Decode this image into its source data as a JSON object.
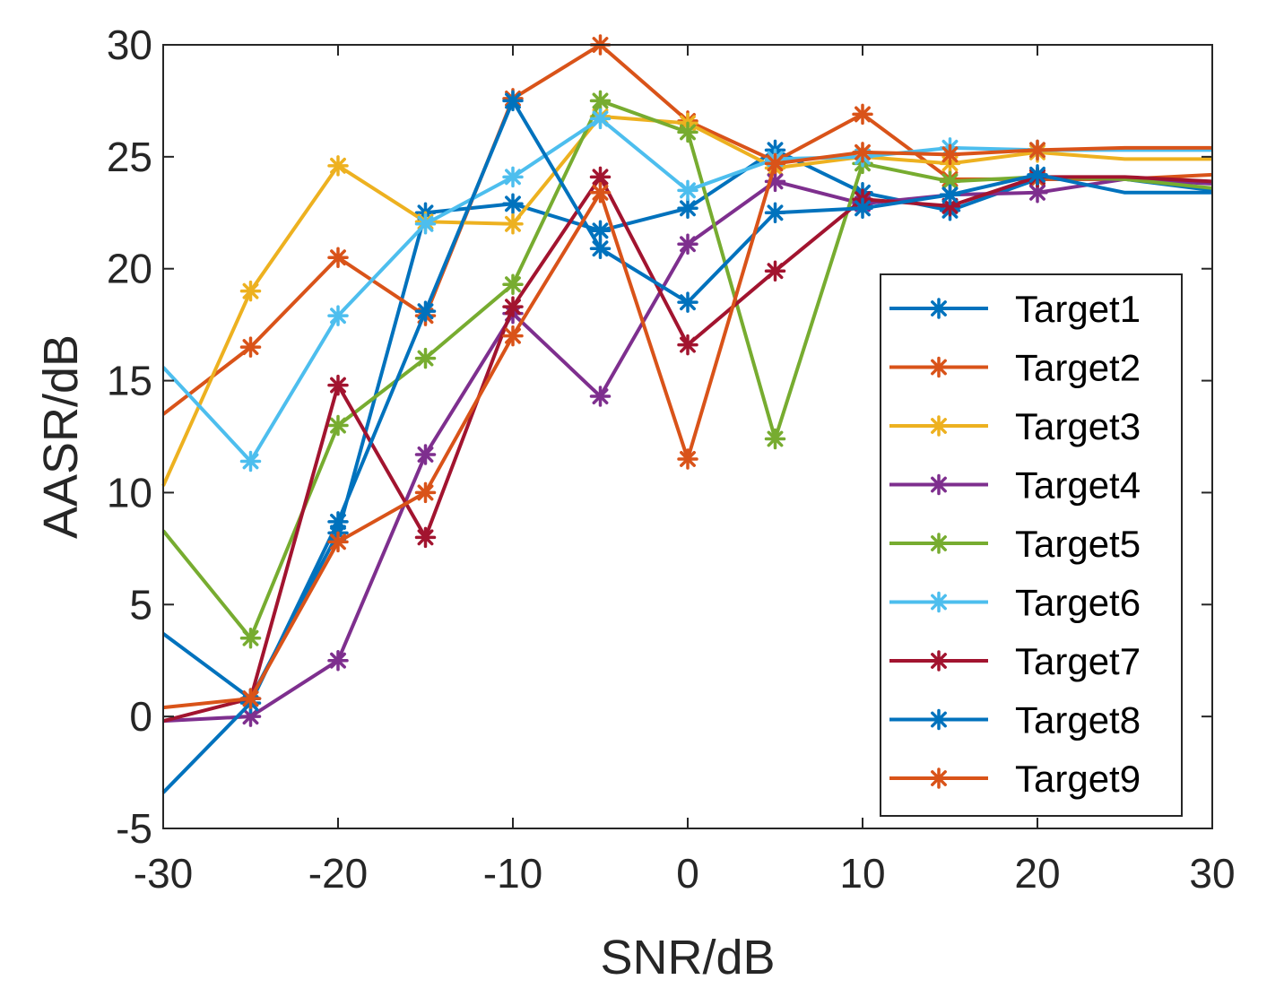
{
  "chart_data": {
    "type": "line",
    "title": "",
    "xlabel": "SNR/dB",
    "ylabel": "AASR/dB",
    "xlim": [
      -30,
      30
    ],
    "ylim": [
      -5,
      30
    ],
    "xticks": [
      -30,
      -20,
      -10,
      0,
      10,
      20,
      30
    ],
    "yticks": [
      -5,
      0,
      5,
      10,
      15,
      20,
      25,
      30
    ],
    "xtick_labels": [
      "-30",
      "-20",
      "-10",
      "0",
      "10",
      "20",
      "30"
    ],
    "ytick_labels": [
      "-5",
      "0",
      "5",
      "10",
      "15",
      "20",
      "25",
      "30"
    ],
    "grid": false,
    "legend_position": "right",
    "x": [
      -30,
      -25,
      -20,
      -15,
      -10,
      -5,
      0,
      5,
      10,
      15,
      20,
      25,
      30
    ],
    "series": [
      {
        "name": "Target1",
        "color": "#0072BD",
        "values": [
          3.7,
          0.8,
          8.2,
          22.5,
          22.9,
          21.7,
          22.7,
          25.3,
          23.4,
          22.6,
          24.0,
          24.0,
          23.5
        ]
      },
      {
        "name": "Target2",
        "color": "#D95319",
        "values": [
          13.5,
          16.5,
          20.5,
          17.9,
          27.6,
          30.0,
          26.6,
          24.8,
          26.9,
          24.0,
          24.0,
          24.0,
          24.2
        ]
      },
      {
        "name": "Target3",
        "color": "#EDB120",
        "values": [
          10.3,
          19.0,
          24.6,
          22.1,
          22.0,
          26.8,
          26.5,
          24.5,
          25.0,
          24.7,
          25.2,
          24.9,
          24.9
        ]
      },
      {
        "name": "Target4",
        "color": "#7E2F8E",
        "values": [
          -0.2,
          0.0,
          2.5,
          11.7,
          18.0,
          14.3,
          21.1,
          23.9,
          22.9,
          23.3,
          23.4,
          24.0,
          23.8
        ]
      },
      {
        "name": "Target5",
        "color": "#77AC30",
        "values": [
          8.3,
          3.5,
          13.0,
          16.0,
          19.3,
          27.5,
          26.1,
          12.4,
          24.7,
          23.9,
          24.1,
          24.0,
          23.6
        ]
      },
      {
        "name": "Target6",
        "color": "#4DBEEE",
        "values": [
          15.6,
          11.4,
          17.9,
          22.0,
          24.1,
          26.7,
          23.5,
          24.9,
          25.0,
          25.4,
          25.3,
          25.3,
          25.3
        ]
      },
      {
        "name": "Target7",
        "color": "#A2142F",
        "values": [
          -0.2,
          0.8,
          14.8,
          8.0,
          18.3,
          24.1,
          16.6,
          19.9,
          23.1,
          22.8,
          24.1,
          24.1,
          23.9
        ]
      },
      {
        "name": "Target8",
        "color": "#0072BD",
        "values": [
          -3.4,
          0.6,
          8.7,
          18.1,
          27.5,
          20.9,
          18.5,
          22.5,
          22.7,
          23.3,
          24.2,
          23.4,
          23.4
        ]
      },
      {
        "name": "Target9",
        "color": "#D95319",
        "values": [
          0.4,
          0.8,
          7.8,
          10.0,
          17.0,
          23.4,
          11.5,
          24.7,
          25.2,
          25.1,
          25.3,
          25.4,
          25.4
        ]
      }
    ]
  }
}
